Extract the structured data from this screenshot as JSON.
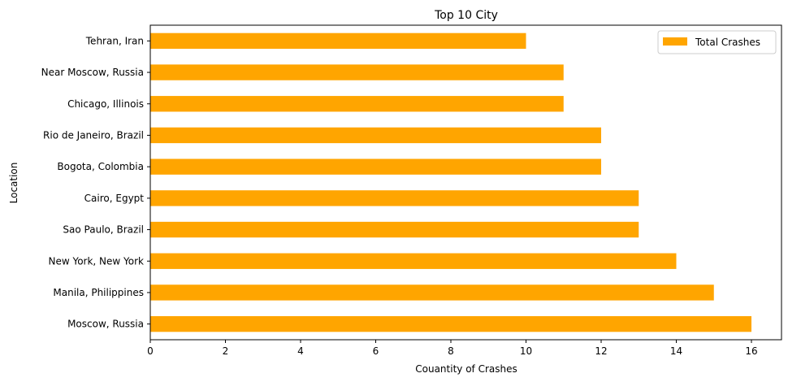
{
  "chart_data": {
    "type": "bar",
    "orientation": "horizontal",
    "title": "Top 10 City",
    "xlabel": "Couantity of Crashes",
    "ylabel": "Location",
    "categories": [
      "Moscow, Russia",
      "Manila, Philippines",
      "New York, New York",
      "Sao Paulo, Brazil",
      "Cairo, Egypt",
      "Bogota, Colombia",
      "Rio de Janeiro, Brazil",
      "Chicago, Illinois",
      "Near Moscow, Russia",
      "Tehran, Iran"
    ],
    "series": [
      {
        "name": "Total Crashes",
        "values": [
          16,
          15,
          14,
          13,
          13,
          12,
          12,
          11,
          11,
          10
        ],
        "color": "#ffa500"
      }
    ],
    "xlim": [
      0,
      16.8
    ],
    "xticks": [
      0,
      2,
      4,
      6,
      8,
      10,
      12,
      14,
      16
    ],
    "grid": false,
    "legend_position": "top-right"
  }
}
